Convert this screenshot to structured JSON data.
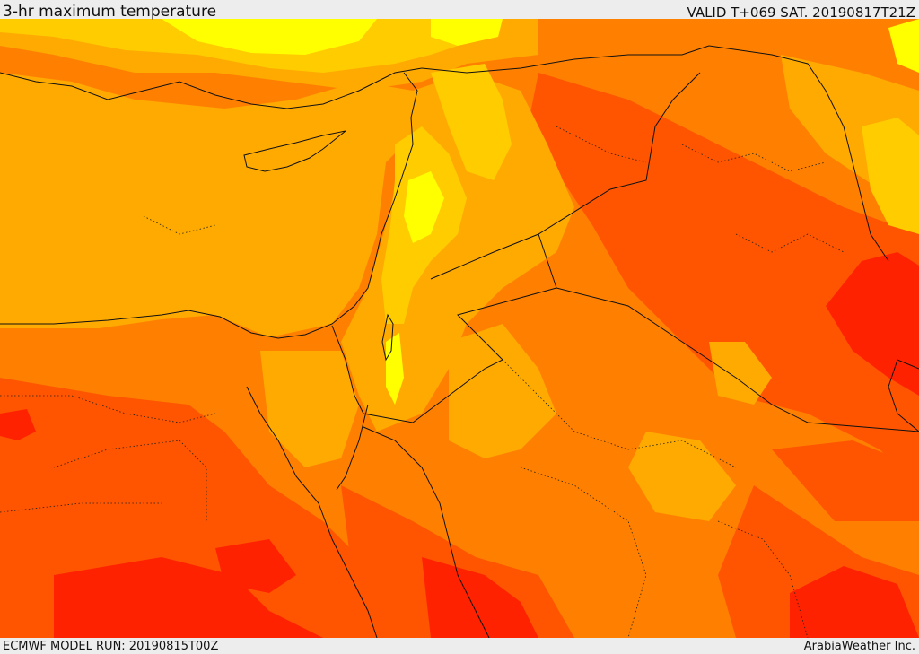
{
  "header": {
    "title": "3-hr maximum temperature",
    "valid_time": "VALID T+069 SAT. 20190817T21Z"
  },
  "footer": {
    "model_run": "ECMWF MODEL RUN: 20190815T00Z",
    "credit": "ArabiaWeather Inc."
  },
  "map": {
    "variable": "3-hr maximum temperature",
    "colors": {
      "hottest": "#ff2200",
      "very_hot": "#ff5500",
      "hot": "#ff8000",
      "warm": "#ffaa00",
      "mild": "#ffcc00",
      "cool": "#ffff00",
      "border": "#111111"
    }
  }
}
